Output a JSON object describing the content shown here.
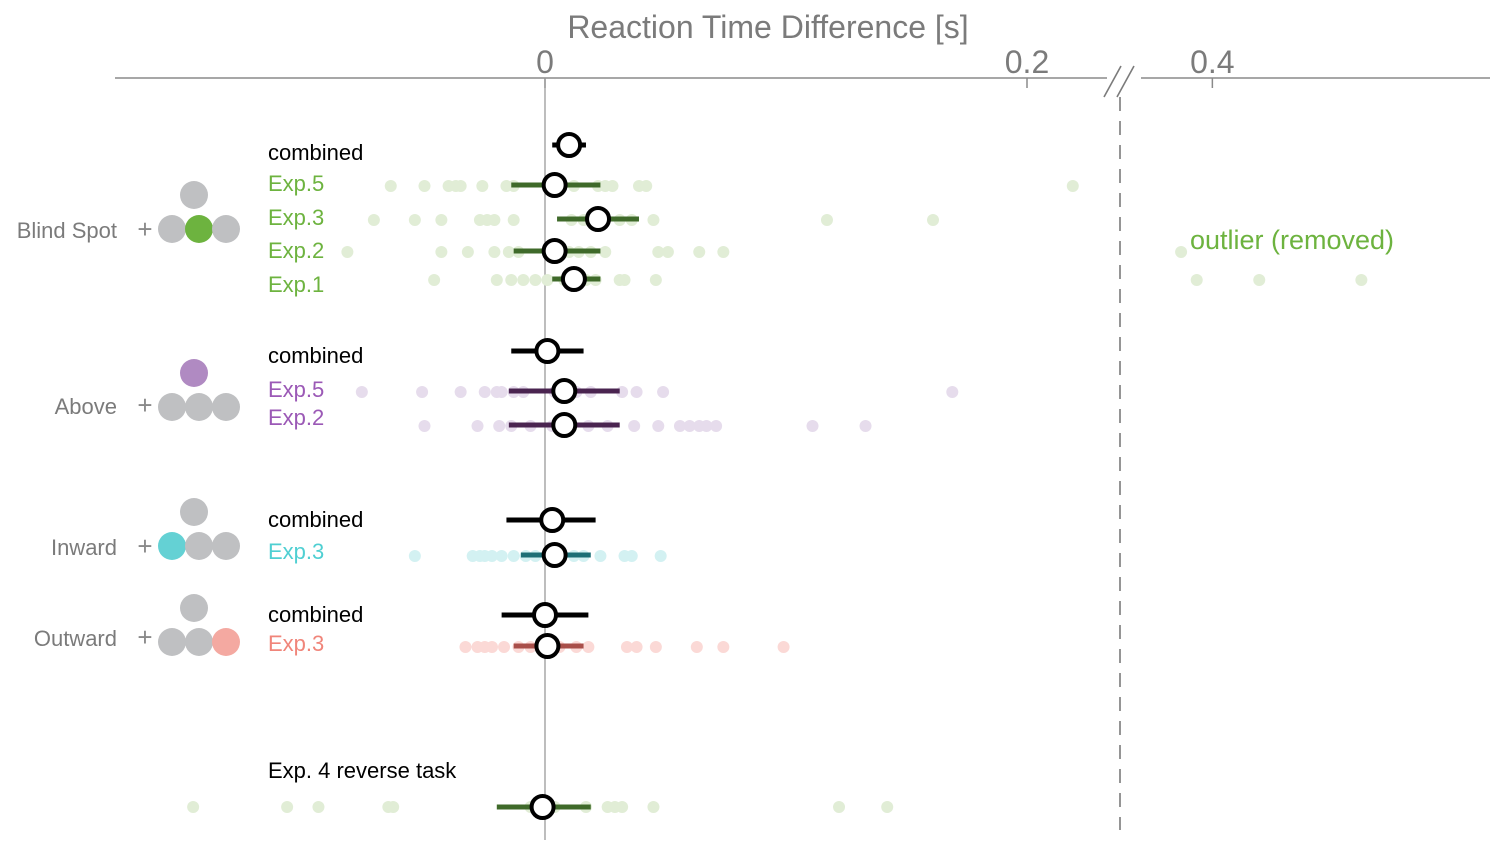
{
  "chart_data": {
    "type": "scatter",
    "xlabel": "Reaction Time Difference [s]",
    "x_ticks": [
      {
        "label": "0",
        "value": 0
      },
      {
        "label": "0.2",
        "value": 0.2
      },
      {
        "label": "0.4",
        "value": 0.4
      }
    ],
    "axis_break": {
      "from": 0.24,
      "to": 0.32,
      "symbol": "//"
    },
    "outlier_label": "outlier (removed)",
    "colors": {
      "combined": "#000000",
      "blind_spot": "#6db33f",
      "blind_spot_dark": "#3f6a2a",
      "blind_spot_points": "#e1edd6",
      "above": "#9b59b6",
      "above_dark": "#4a2450",
      "above_points": "#e6dcec",
      "inward": "#4fcfd2",
      "inward_dark": "#1d6f76",
      "inward_points": "#d3f1f2",
      "outward": "#f0857a",
      "outward_dark": "#a94f4a",
      "outward_points": "#fbd9d6",
      "icon_gray": "#bfc0c2",
      "axis_text": "#7b7b7b"
    },
    "conditions": [
      {
        "name": "Blind Spot",
        "highlight": "bottom-center",
        "highlight_color": "#6db33f",
        "series": [
          {
            "label": "combined",
            "kind": "combined",
            "mean": 0.01,
            "ci": [
              0.003,
              0.017
            ],
            "points": []
          },
          {
            "label": "Exp.5",
            "kind": "exp",
            "mean": 0.004,
            "ci": [
              -0.014,
              0.023
            ],
            "points": [
              -0.064,
              -0.05,
              -0.04,
              -0.037,
              -0.035,
              -0.026,
              -0.016,
              -0.013,
              0.012,
              0.022,
              0.025,
              0.028,
              0.039,
              0.042,
              0.219
            ]
          },
          {
            "label": "Exp.3",
            "kind": "exp",
            "mean": 0.022,
            "ci": [
              0.005,
              0.039
            ],
            "points": [
              -0.071,
              -0.054,
              -0.043,
              -0.027,
              -0.024,
              -0.021,
              -0.013,
              0.011,
              0.016,
              0.021,
              0.031,
              0.036,
              0.045,
              0.117,
              0.161
            ]
          },
          {
            "label": "Exp.2",
            "kind": "exp",
            "mean": 0.004,
            "ci": [
              -0.013,
              0.023
            ],
            "points": [
              -0.082,
              -0.043,
              -0.032,
              -0.021,
              -0.015,
              -0.011,
              0.01,
              0.014,
              0.019,
              0.025,
              0.047,
              0.051,
              0.064,
              0.074,
              0.37
            ]
          },
          {
            "label": "Exp.1",
            "kind": "exp",
            "mean": 0.012,
            "ci": [
              0.003,
              0.023
            ],
            "points": [
              -0.046,
              -0.02,
              -0.014,
              -0.009,
              -0.004,
              0.001,
              0.008,
              0.017,
              0.021,
              0.031,
              0.033,
              0.046,
              0.385,
              0.445,
              0.543
            ]
          }
        ]
      },
      {
        "name": "Above",
        "highlight": "top",
        "highlight_color": "#b08ac2",
        "series": [
          {
            "label": "combined",
            "kind": "combined",
            "mean": 0.001,
            "ci": [
              -0.014,
              0.016
            ],
            "points": []
          },
          {
            "label": "Exp.5",
            "kind": "exp",
            "mean": 0.008,
            "ci": [
              -0.015,
              0.031
            ],
            "points": [
              -0.076,
              -0.051,
              -0.035,
              -0.025,
              -0.02,
              -0.018,
              -0.013,
              -0.009,
              0.004,
              0.008,
              0.013,
              0.019,
              0.032,
              0.038,
              0.049,
              0.169
            ]
          },
          {
            "label": "Exp.2",
            "kind": "exp",
            "mean": 0.008,
            "ci": [
              -0.015,
              0.031
            ],
            "points": [
              -0.05,
              -0.028,
              -0.019,
              -0.014,
              -0.006,
              0.003,
              0.009,
              0.018,
              0.026,
              0.037,
              0.047,
              0.056,
              0.06,
              0.064,
              0.067,
              0.071,
              0.111,
              0.133
            ]
          }
        ]
      },
      {
        "name": "Inward",
        "highlight": "bottom-left",
        "highlight_color": "#64d1d4",
        "series": [
          {
            "label": "combined",
            "kind": "combined",
            "mean": 0.003,
            "ci": [
              -0.016,
              0.021
            ],
            "points": []
          },
          {
            "label": "Exp.3",
            "kind": "exp",
            "mean": 0.004,
            "ci": [
              -0.01,
              0.019
            ],
            "points": [
              -0.054,
              -0.03,
              -0.027,
              -0.025,
              -0.022,
              -0.018,
              -0.013,
              -0.008,
              -0.004,
              0.006,
              0.012,
              0.016,
              0.023,
              0.033,
              0.036,
              0.048
            ]
          }
        ]
      },
      {
        "name": "Outward",
        "highlight": "bottom-right",
        "highlight_color": "#f4a9a1",
        "series": [
          {
            "label": "combined",
            "kind": "combined",
            "mean": 0.0,
            "ci": [
              -0.018,
              0.018
            ],
            "points": []
          },
          {
            "label": "Exp.3",
            "kind": "exp",
            "mean": 0.001,
            "ci": [
              -0.013,
              0.016
            ],
            "points": [
              -0.033,
              -0.028,
              -0.025,
              -0.022,
              -0.017,
              -0.011,
              -0.006,
              -0.002,
              0.006,
              0.013,
              0.018,
              0.034,
              0.038,
              0.046,
              0.063,
              0.074,
              0.099
            ]
          }
        ]
      }
    ],
    "reverse_task": {
      "label": "Exp. 4 reverse task",
      "color": "#3f6a2a",
      "points_color": "#e1edd6",
      "mean": -0.001,
      "ci": [
        -0.02,
        0.019
      ],
      "points": [
        -0.146,
        -0.107,
        -0.094,
        -0.065,
        -0.063,
        -0.006,
        0.004,
        0.017,
        0.026,
        0.029,
        0.032,
        0.045,
        0.122,
        0.142
      ]
    }
  }
}
